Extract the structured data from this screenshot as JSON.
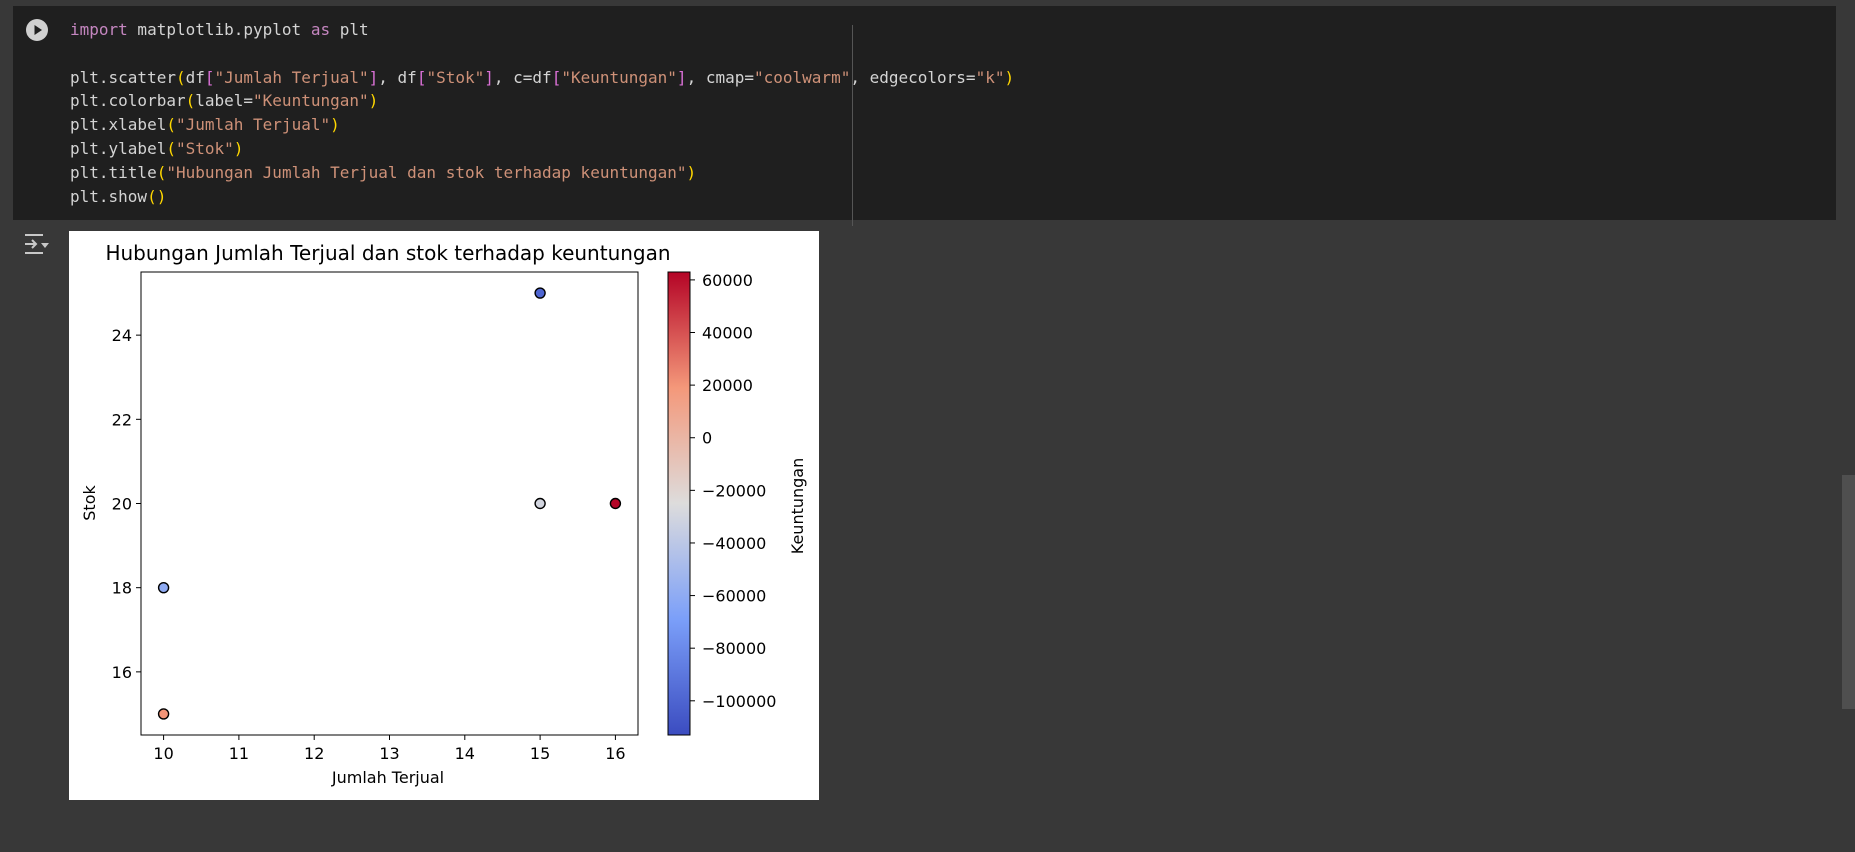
{
  "cell": {
    "run_icon": "play-circle-icon",
    "code_lines": [
      [
        {
          "t": "import",
          "c": "kw"
        },
        {
          "t": " matplotlib.pyplot "
        },
        {
          "t": "as",
          "c": "kw"
        },
        {
          "t": " plt"
        }
      ],
      [],
      [
        {
          "t": "plt.scatter"
        },
        {
          "t": "(",
          "c": "br"
        },
        {
          "t": "df"
        },
        {
          "t": "[",
          "c": "br2"
        },
        {
          "t": "\"Jumlah Terjual\"",
          "c": "st"
        },
        {
          "t": "]",
          "c": "br2"
        },
        {
          "t": ", df"
        },
        {
          "t": "[",
          "c": "br2"
        },
        {
          "t": "\"Stok\"",
          "c": "st"
        },
        {
          "t": "]",
          "c": "br2"
        },
        {
          "t": ", c=df"
        },
        {
          "t": "[",
          "c": "br2"
        },
        {
          "t": "\"Keuntungan\"",
          "c": "st"
        },
        {
          "t": "]",
          "c": "br2"
        },
        {
          "t": ", cmap="
        },
        {
          "t": "\"coolwarm\"",
          "c": "st"
        },
        {
          "t": ", edgecolors="
        },
        {
          "t": "\"k\"",
          "c": "st"
        },
        {
          "t": ")",
          "c": "br"
        }
      ],
      [
        {
          "t": "plt.colorbar"
        },
        {
          "t": "(",
          "c": "br"
        },
        {
          "t": "label="
        },
        {
          "t": "\"Keuntungan\"",
          "c": "st"
        },
        {
          "t": ")",
          "c": "br"
        }
      ],
      [
        {
          "t": "plt.xlabel"
        },
        {
          "t": "(",
          "c": "br"
        },
        {
          "t": "\"Jumlah Terjual\"",
          "c": "st"
        },
        {
          "t": ")",
          "c": "br"
        }
      ],
      [
        {
          "t": "plt.ylabel"
        },
        {
          "t": "(",
          "c": "br"
        },
        {
          "t": "\"Stok\"",
          "c": "st"
        },
        {
          "t": ")",
          "c": "br"
        }
      ],
      [
        {
          "t": "plt.title"
        },
        {
          "t": "(",
          "c": "br"
        },
        {
          "t": "\"Hubungan Jumlah Terjual dan stok terhadap keuntungan\"",
          "c": "st"
        },
        {
          "t": ")",
          "c": "br"
        }
      ],
      [
        {
          "t": "plt.show"
        },
        {
          "t": "()",
          "c": "br"
        }
      ]
    ]
  },
  "output": {
    "toggle_icon": "output-toggle-icon"
  },
  "chart_data": {
    "type": "scatter",
    "title": "Hubungan Jumlah Terjual dan stok terhadap keuntungan",
    "xlabel": "Jumlah Terjual",
    "ylabel": "Stok",
    "colorbar_label": "Keuntungan",
    "cmap": "coolwarm",
    "xlim": [
      9.7,
      16.3
    ],
    "ylim": [
      14.5,
      25.5
    ],
    "xticks": [
      10,
      11,
      12,
      13,
      14,
      15,
      16
    ],
    "yticks": [
      16,
      18,
      20,
      22,
      24
    ],
    "clim": [
      -113000,
      63000
    ],
    "cticks": [
      60000,
      40000,
      20000,
      0,
      -20000,
      -40000,
      -60000,
      -80000,
      -100000
    ],
    "cticklabels": [
      "60000",
      "40000",
      "20000",
      "0",
      "−20000",
      "−40000",
      "−60000",
      "−80000",
      "−100000"
    ],
    "points": [
      {
        "x": 10,
        "y": 18,
        "c": -60000
      },
      {
        "x": 10,
        "y": 15,
        "c": 20000
      },
      {
        "x": 15,
        "y": 25,
        "c": -100000
      },
      {
        "x": 15,
        "y": 20,
        "c": -30000
      },
      {
        "x": 16,
        "y": 20,
        "c": 63000
      }
    ],
    "grid": false
  }
}
